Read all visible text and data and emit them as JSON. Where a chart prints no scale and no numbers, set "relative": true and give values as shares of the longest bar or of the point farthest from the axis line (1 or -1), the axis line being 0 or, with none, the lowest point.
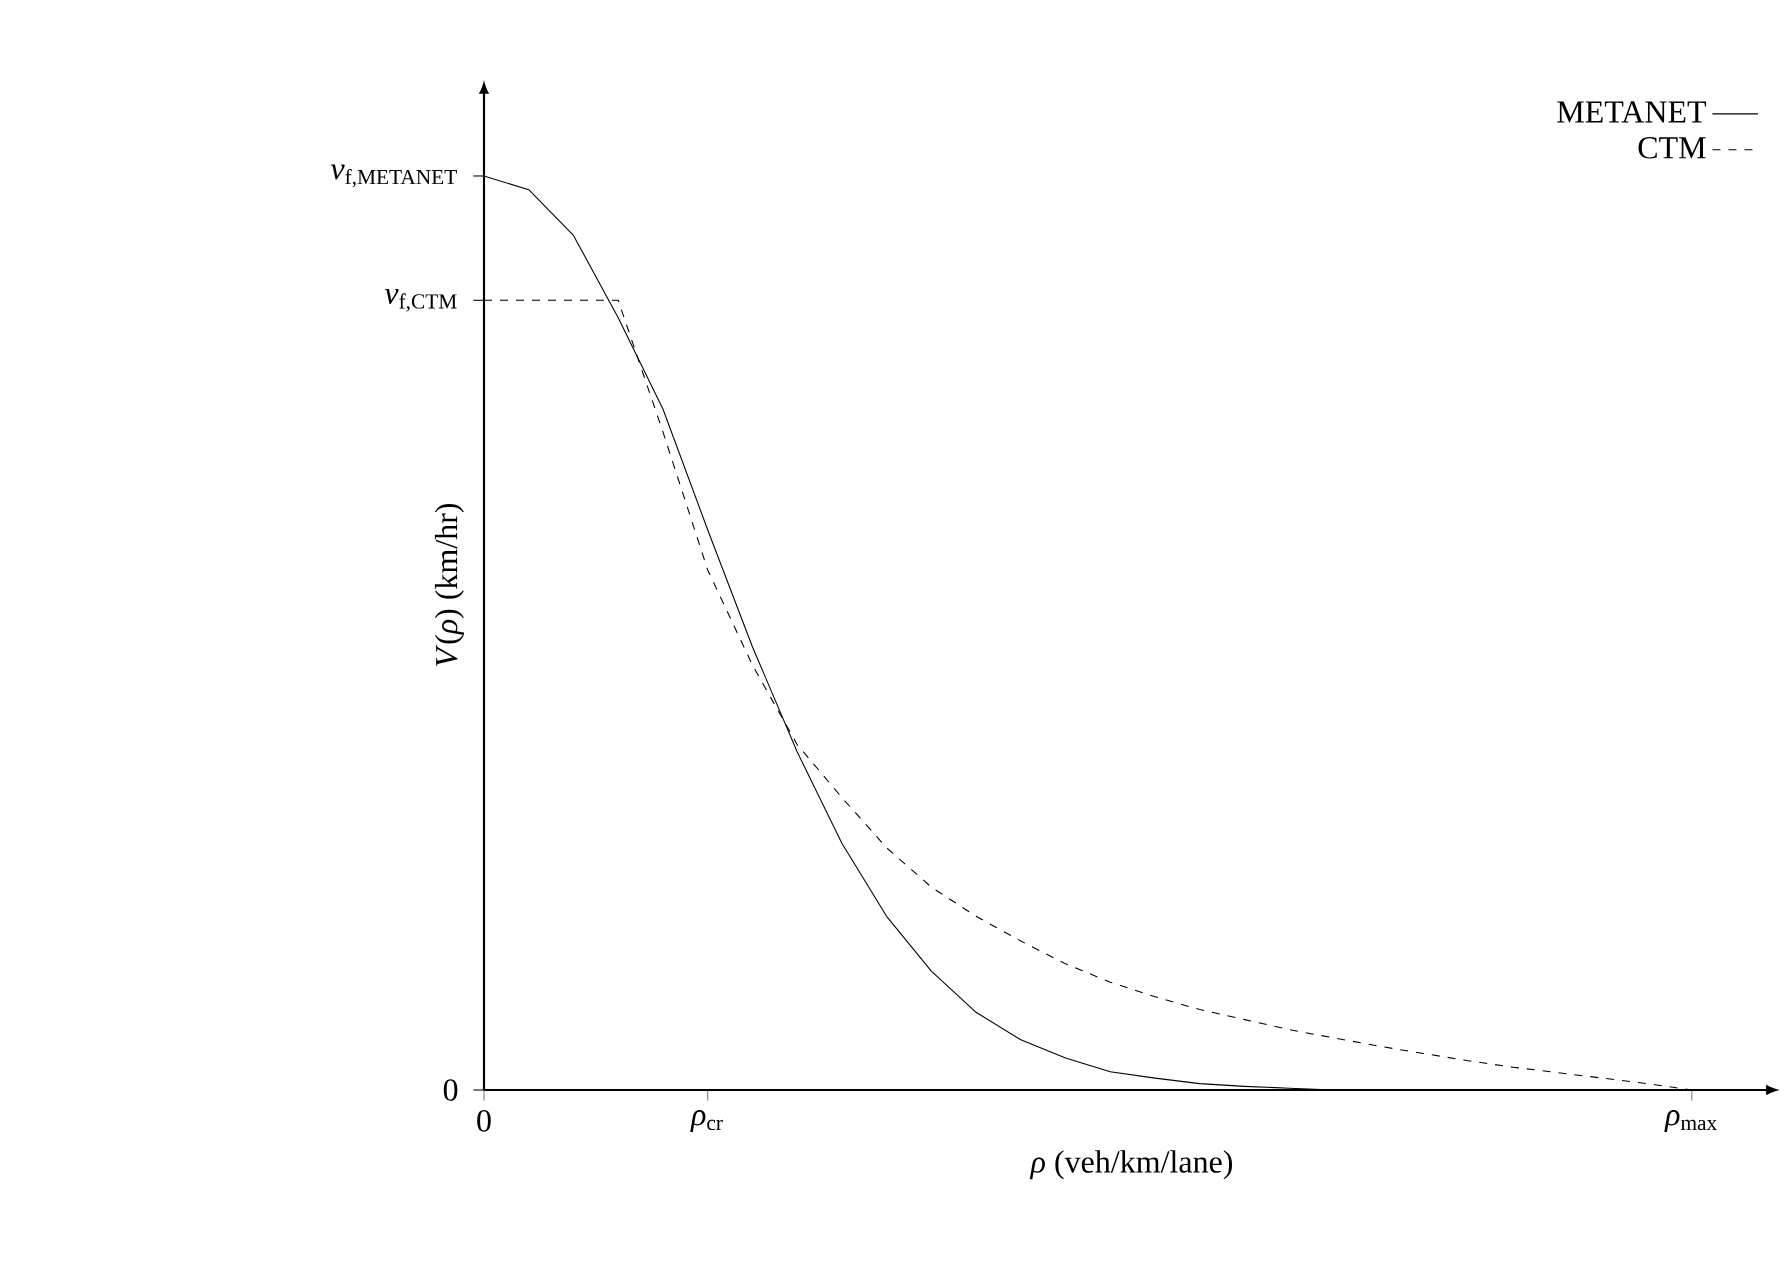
{
  "chart_data": {
    "type": "line",
    "relative": true,
    "xlabel": "*ρ* (veh/km/lane)",
    "ylabel": "*V*(*ρ*) (km/hr)",
    "categories": [
      "0",
      null,
      null,
      null,
      null,
      "*ρ*$_{cr}$",
      null,
      null,
      null,
      null,
      null,
      null,
      null,
      null,
      null,
      null,
      null,
      null,
      null,
      null,
      null,
      null,
      null,
      null,
      null,
      null,
      null,
      "*ρ*$_{max}$"
    ],
    "annotations": [
      "*v*$_{f,METANET}$",
      "*v*$_{f,CTM}$",
      "0"
    ],
    "legend": "top right",
    "marker": "none",
    "series": [
      {
        "name": "METANET",
        "color": "#000000",
        "line_style": "solid",
        "values": [
          1,
          0.985,
          0.935,
          0.845,
          0.745,
          0.613,
          0.485,
          0.37,
          0.27,
          0.19,
          0.13,
          0.085,
          0.055,
          0.035,
          0.02,
          0.013,
          0.007,
          0.004,
          0.002,
          0,
          0,
          0,
          0,
          0,
          0,
          0,
          0,
          0
        ]
      },
      {
        "name": "CTM",
        "color": "#000000",
        "line_style": "dashed",
        "values": [
          0.864,
          0.864,
          0.864,
          0.864,
          0.72,
          0.569,
          0.465,
          0.378,
          0.32,
          0.265,
          0.222,
          0.19,
          0.163,
          0.138,
          0.118,
          0.102,
          0.088,
          0.077,
          0.066,
          0.057,
          0.048,
          0.04,
          0.032,
          0.025,
          0.019,
          0.013,
          0.007,
          0
        ]
      }
    ]
  }
}
